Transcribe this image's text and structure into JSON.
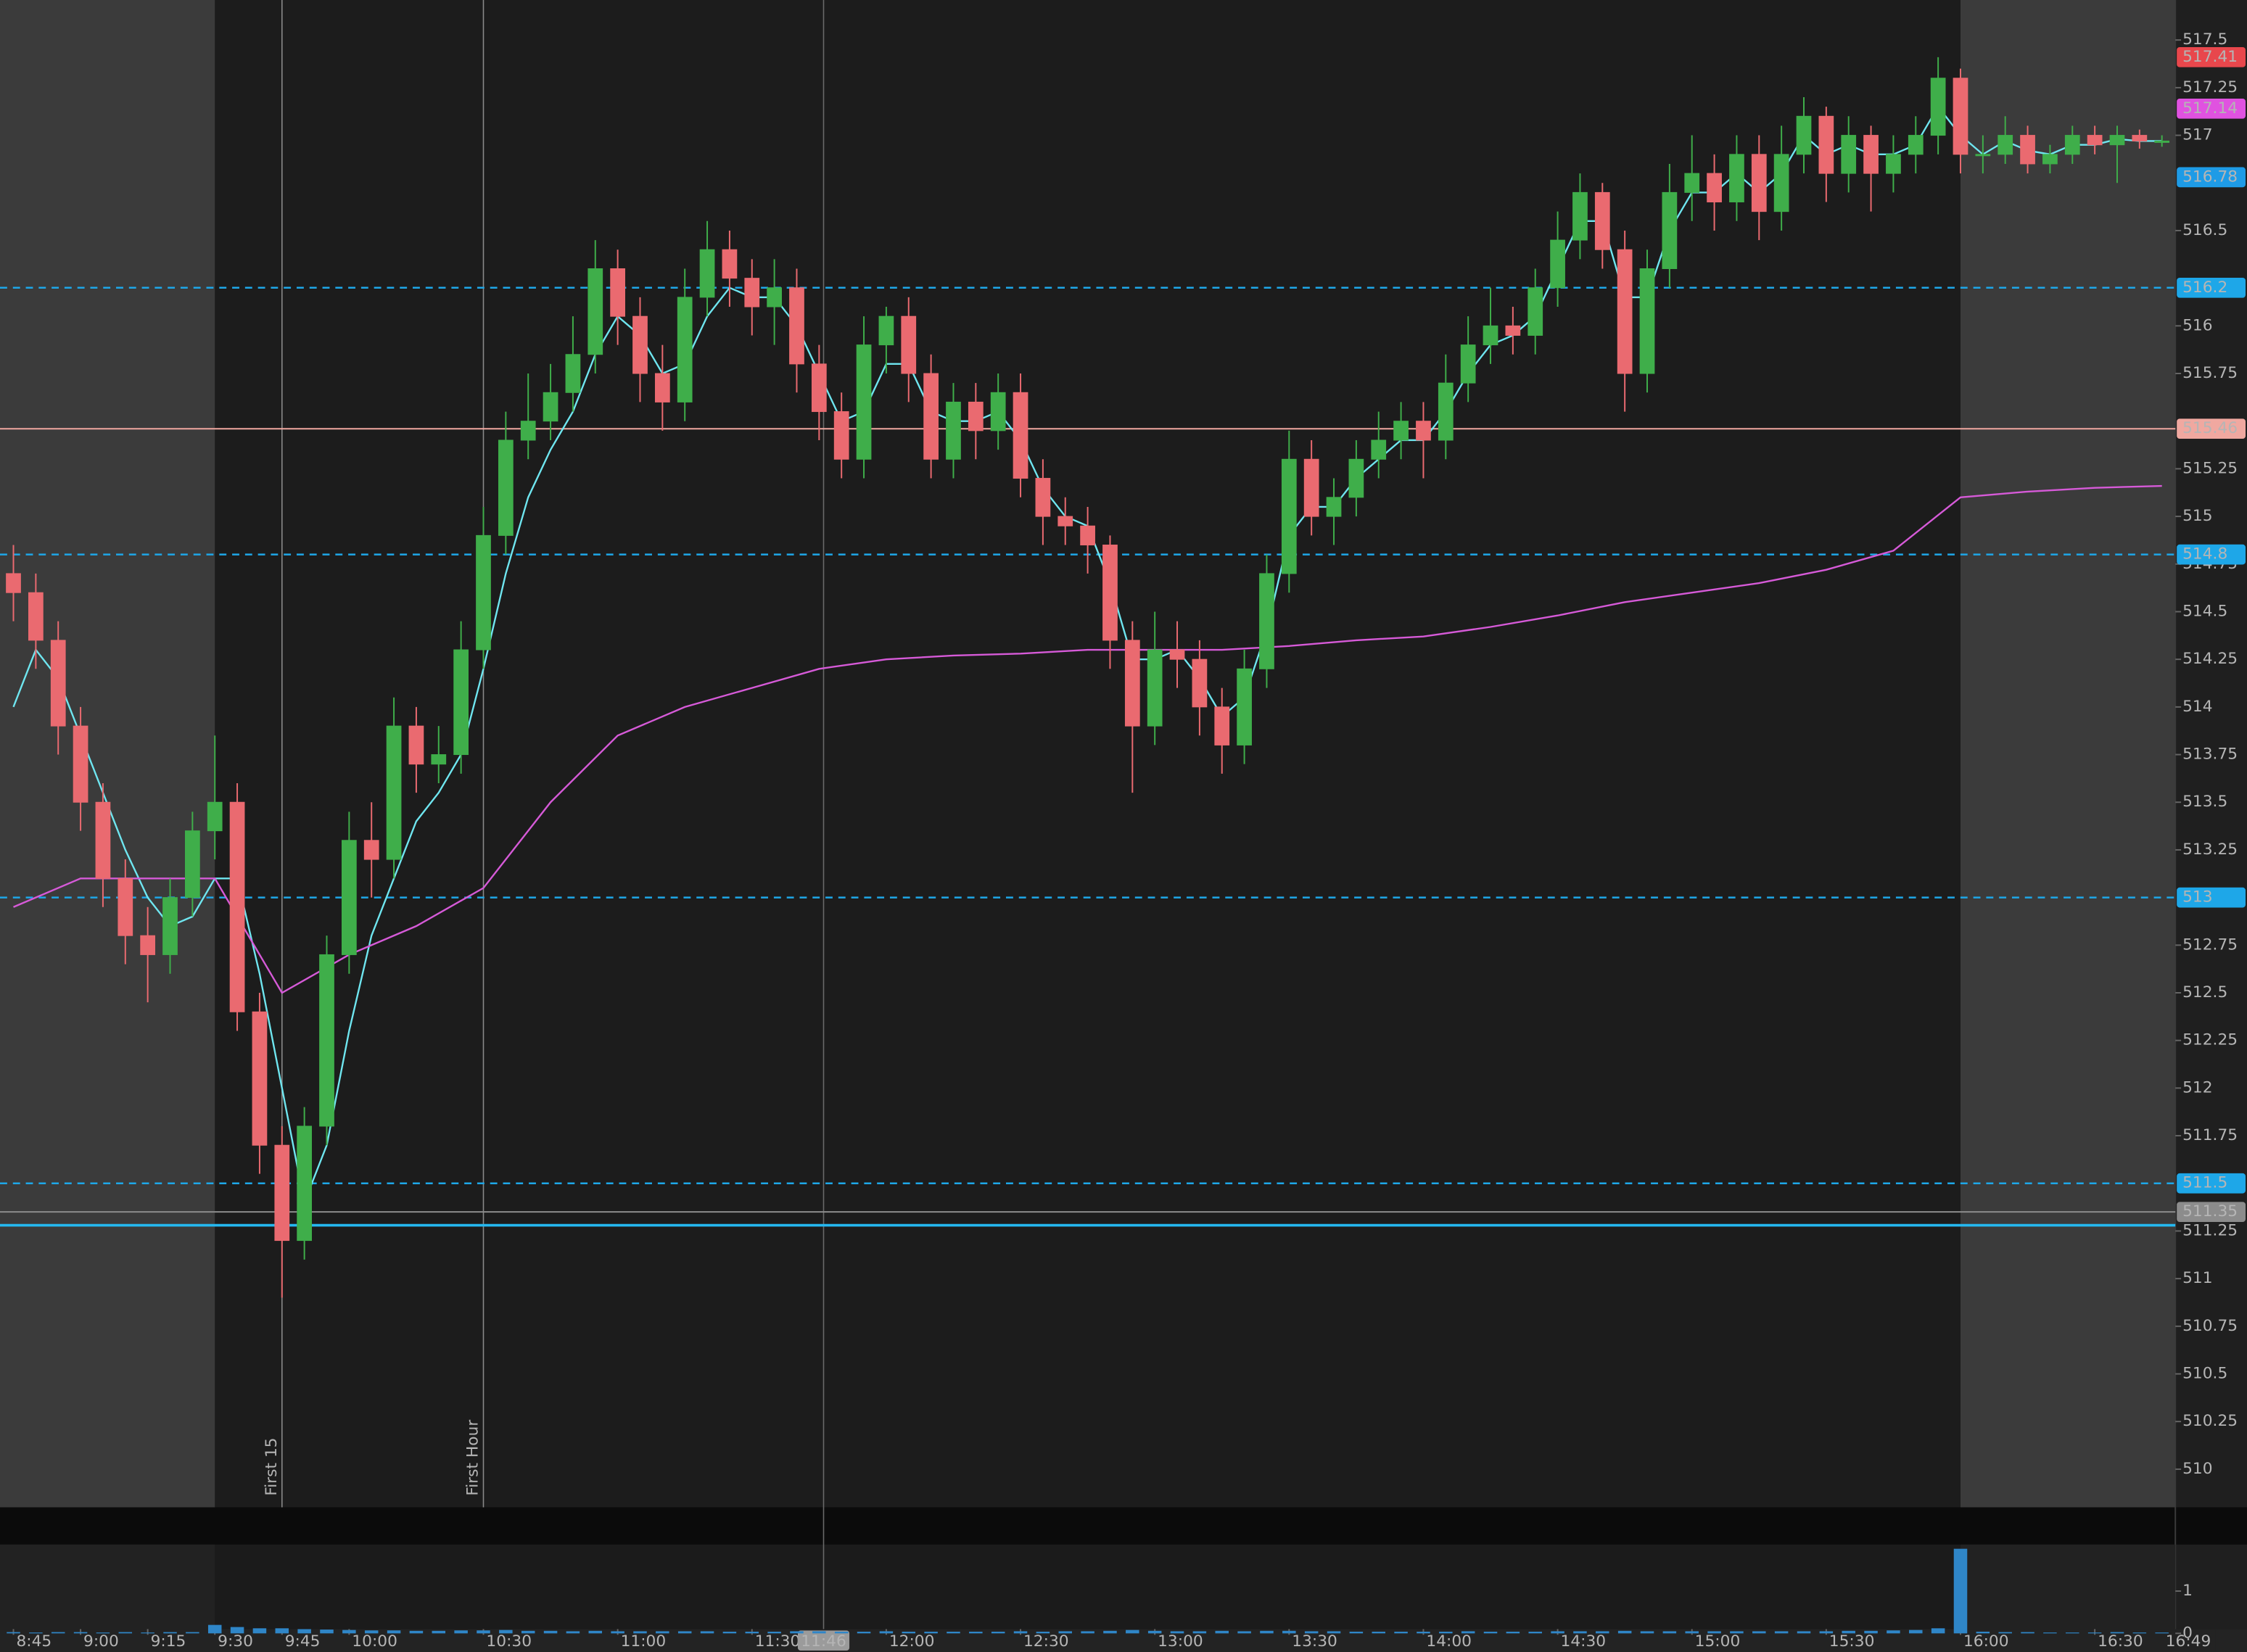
{
  "chart_data": {
    "type": "candlestick",
    "categories": [
      "8:45",
      "8:50",
      "8:55",
      "9:00",
      "9:05",
      "9:10",
      "9:15",
      "9:20",
      "9:25",
      "9:30",
      "9:35",
      "9:40",
      "9:45",
      "9:50",
      "9:55",
      "10:00",
      "10:05",
      "10:10",
      "10:15",
      "10:20",
      "10:25",
      "10:30",
      "10:35",
      "10:40",
      "10:45",
      "10:50",
      "10:55",
      "11:00",
      "11:05",
      "11:10",
      "11:15",
      "11:20",
      "11:25",
      "11:30",
      "11:35",
      "11:40",
      "11:45",
      "11:50",
      "11:55",
      "12:00",
      "12:05",
      "12:10",
      "12:15",
      "12:20",
      "12:25",
      "12:30",
      "12:35",
      "12:40",
      "12:45",
      "12:50",
      "12:55",
      "13:00",
      "13:05",
      "13:10",
      "13:15",
      "13:20",
      "13:25",
      "13:30",
      "13:35",
      "13:40",
      "13:45",
      "13:50",
      "13:55",
      "14:00",
      "14:05",
      "14:10",
      "14:15",
      "14:20",
      "14:25",
      "14:30",
      "14:35",
      "14:40",
      "14:45",
      "14:50",
      "14:55",
      "15:00",
      "15:05",
      "15:10",
      "15:15",
      "15:20",
      "15:25",
      "15:30",
      "15:35",
      "15:40",
      "15:45",
      "15:50",
      "15:55",
      "16:00",
      "16:05",
      "16:10",
      "16:15",
      "16:20",
      "16:25",
      "16:30",
      "16:35",
      "16:40",
      "16:45"
    ],
    "open": [
      514.7,
      514.6,
      514.35,
      513.9,
      513.5,
      513.1,
      512.8,
      512.7,
      513.0,
      513.35,
      513.5,
      512.4,
      511.7,
      511.2,
      511.8,
      512.7,
      513.3,
      513.2,
      513.9,
      513.7,
      513.75,
      514.3,
      514.9,
      515.4,
      515.5,
      515.65,
      515.85,
      516.3,
      516.05,
      515.75,
      515.6,
      516.15,
      516.4,
      516.25,
      516.1,
      516.2,
      515.8,
      515.55,
      515.3,
      515.9,
      516.05,
      515.75,
      515.3,
      515.6,
      515.45,
      515.65,
      515.2,
      515.0,
      514.95,
      514.85,
      514.35,
      513.9,
      514.3,
      514.25,
      514.0,
      513.8,
      514.2,
      514.7,
      515.3,
      515.0,
      515.1,
      515.3,
      515.4,
      515.5,
      515.4,
      515.7,
      515.9,
      516.0,
      515.95,
      516.2,
      516.45,
      516.7,
      516.4,
      515.75,
      516.3,
      516.7,
      516.8,
      516.65,
      516.9,
      516.6,
      516.9,
      517.1,
      516.8,
      517.0,
      516.8,
      516.9,
      517.0,
      517.3,
      516.9,
      516.9,
      517.0,
      516.85,
      516.9,
      517.0,
      516.95,
      517.0,
      516.97
    ],
    "high": [
      514.85,
      514.7,
      514.45,
      514.0,
      513.6,
      513.2,
      512.95,
      513.1,
      513.45,
      513.85,
      513.6,
      512.5,
      511.8,
      511.9,
      512.8,
      513.45,
      513.5,
      514.05,
      514.0,
      513.9,
      514.45,
      515.05,
      515.55,
      515.75,
      515.8,
      516.05,
      516.45,
      516.4,
      516.15,
      515.9,
      516.3,
      516.55,
      516.5,
      516.35,
      516.35,
      516.3,
      515.9,
      515.65,
      516.05,
      516.1,
      516.15,
      515.85,
      515.7,
      515.7,
      515.75,
      515.75,
      515.3,
      515.1,
      515.05,
      514.9,
      514.45,
      514.5,
      514.45,
      514.35,
      514.1,
      514.3,
      514.8,
      515.45,
      515.4,
      515.2,
      515.4,
      515.55,
      515.6,
      515.6,
      515.85,
      516.05,
      516.2,
      516.1,
      516.3,
      516.6,
      516.8,
      516.75,
      516.5,
      516.4,
      516.85,
      517.0,
      516.9,
      517.0,
      517.0,
      517.05,
      517.2,
      517.15,
      517.1,
      517.05,
      517.0,
      517.1,
      517.41,
      517.35,
      517.0,
      517.1,
      517.05,
      516.95,
      517.05,
      517.05,
      517.05,
      517.03,
      517.0
    ],
    "low": [
      514.45,
      514.2,
      513.75,
      513.35,
      512.95,
      512.65,
      512.45,
      512.6,
      512.9,
      513.2,
      512.3,
      511.55,
      510.9,
      511.1,
      511.7,
      512.6,
      513.0,
      513.1,
      513.55,
      513.6,
      513.65,
      514.2,
      514.8,
      515.3,
      515.4,
      515.55,
      515.75,
      515.9,
      515.6,
      515.45,
      515.5,
      516.05,
      516.1,
      515.95,
      515.9,
      515.65,
      515.4,
      515.2,
      515.2,
      515.75,
      515.6,
      515.2,
      515.2,
      515.3,
      515.35,
      515.1,
      514.85,
      514.85,
      514.7,
      514.2,
      513.55,
      513.8,
      514.1,
      513.85,
      513.65,
      513.7,
      514.1,
      514.6,
      514.9,
      514.85,
      515.0,
      515.2,
      515.3,
      515.2,
      515.3,
      515.6,
      515.8,
      515.85,
      515.85,
      516.1,
      516.35,
      516.3,
      515.55,
      515.65,
      516.2,
      516.55,
      516.5,
      516.55,
      516.45,
      516.5,
      516.8,
      516.65,
      516.7,
      516.6,
      516.7,
      516.8,
      516.9,
      516.8,
      516.8,
      516.85,
      516.8,
      516.8,
      516.85,
      516.9,
      516.75,
      516.93,
      516.94
    ],
    "close": [
      514.6,
      514.35,
      513.9,
      513.5,
      513.1,
      512.8,
      512.7,
      513.0,
      513.35,
      513.5,
      512.4,
      511.7,
      511.2,
      511.8,
      512.7,
      513.3,
      513.2,
      513.9,
      513.7,
      513.75,
      514.3,
      514.9,
      515.4,
      515.5,
      515.65,
      515.85,
      516.3,
      516.05,
      515.75,
      515.6,
      516.15,
      516.4,
      516.25,
      516.1,
      516.2,
      515.8,
      515.55,
      515.3,
      515.9,
      516.05,
      515.75,
      515.3,
      515.6,
      515.45,
      515.65,
      515.2,
      515.0,
      514.95,
      514.85,
      514.35,
      513.9,
      514.3,
      514.25,
      514.0,
      513.8,
      514.2,
      514.7,
      515.3,
      515.0,
      515.1,
      515.3,
      515.4,
      515.5,
      515.4,
      515.7,
      515.9,
      516.0,
      515.95,
      516.2,
      516.45,
      516.7,
      516.4,
      515.75,
      516.3,
      516.7,
      516.8,
      516.65,
      516.9,
      516.6,
      516.9,
      517.1,
      516.8,
      517.0,
      516.8,
      516.9,
      517.0,
      517.3,
      516.9,
      516.9,
      517.0,
      516.85,
      516.9,
      517.0,
      516.95,
      517.0,
      516.97,
      516.97
    ],
    "up_color": "#3fae4a",
    "down_color": "#ea6a70",
    "series": [
      {
        "color": "#6fe6f0",
        "values": [
          514.0,
          514.3,
          514.15,
          513.85,
          513.55,
          513.25,
          513.0,
          512.85,
          512.9,
          513.1,
          513.1,
          512.6,
          512.0,
          511.4,
          511.7,
          512.3,
          512.8,
          513.1,
          513.4,
          513.55,
          513.75,
          514.2,
          514.7,
          515.1,
          515.35,
          515.55,
          515.85,
          516.05,
          515.95,
          515.75,
          515.8,
          516.05,
          516.2,
          516.15,
          516.15,
          516.0,
          515.75,
          515.5,
          515.55,
          515.8,
          515.8,
          515.55,
          515.5,
          515.5,
          515.55,
          515.4,
          515.15,
          515.0,
          514.95,
          514.65,
          514.25,
          514.25,
          514.3,
          514.15,
          513.95,
          514.05,
          514.4,
          514.9,
          515.05,
          515.05,
          515.2,
          515.3,
          515.4,
          515.4,
          515.55,
          515.75,
          515.9,
          515.95,
          516.05,
          516.3,
          516.55,
          516.55,
          516.15,
          516.15,
          516.5,
          516.7,
          516.7,
          516.8,
          516.7,
          516.8,
          517.0,
          516.9,
          516.95,
          516.9,
          516.9,
          516.95,
          517.15,
          517.0,
          516.9,
          516.97,
          516.92,
          516.9,
          516.95,
          516.95,
          516.98,
          516.97,
          516.97
        ]
      },
      {
        "color": "#d65ad8",
        "x": [
          "8:45",
          "9:00",
          "9:15",
          "9:30",
          "9:45",
          "10:00",
          "10:15",
          "10:30",
          "10:45",
          "11:00",
          "11:15",
          "11:30",
          "11:45",
          "12:00",
          "12:15",
          "12:30",
          "12:45",
          "13:00",
          "13:15",
          "13:30",
          "13:45",
          "14:00",
          "14:15",
          "14:30",
          "14:45",
          "15:00",
          "15:15",
          "15:30",
          "15:45",
          "16:00",
          "16:15",
          "16:30",
          "16:45"
        ],
        "values": [
          512.95,
          513.1,
          513.1,
          513.1,
          512.5,
          512.7,
          512.85,
          513.05,
          513.5,
          513.85,
          514.0,
          514.1,
          514.2,
          514.25,
          514.27,
          514.28,
          514.3,
          514.3,
          514.3,
          514.32,
          514.35,
          514.37,
          514.42,
          514.48,
          514.55,
          514.6,
          514.65,
          514.72,
          514.82,
          515.1,
          515.13,
          515.15,
          515.16
        ]
      }
    ],
    "xlim": [
      "8:42",
      "16:48"
    ],
    "xticks": [
      "8:45",
      "9:00",
      "9:15",
      "9:30",
      "9:45",
      "10:00",
      "10:30",
      "11:00",
      "11:30",
      "12:00",
      "12:30",
      "13:00",
      "13:30",
      "14:00",
      "14:30",
      "15:00",
      "15:30",
      "16:00",
      "16:30"
    ],
    "ylim": [
      509.8,
      517.71
    ],
    "yticks": [
      510,
      510.25,
      510.5,
      510.75,
      511,
      511.25,
      511.75,
      512,
      512.25,
      512.5,
      512.75,
      513.25,
      513.5,
      513.75,
      514,
      514.25,
      514.5,
      514.75,
      515,
      515.25,
      515.75,
      516,
      516.5,
      517,
      517.25,
      517.5
    ],
    "sessions": {
      "regular_start": "9:30",
      "regular_end": "16:00"
    },
    "levels": [
      {
        "value": 517.41,
        "color": "#e8474c",
        "text_color": "#ffffff",
        "line": "none",
        "box": true
      },
      {
        "value": 517.14,
        "color": "#e052e0",
        "text_color": "#ffffff",
        "line": "none",
        "box": true
      },
      {
        "value": 516.78,
        "color": "#1e9be6",
        "text_color": "#0c2233",
        "line": "none",
        "box": true
      },
      {
        "value": 516.2,
        "color": "#1ea7e8",
        "text_color": "#0c2233",
        "line": "dashed",
        "box": true
      },
      {
        "value": 515.46,
        "color": "#f0a8a0",
        "text_color": "#3a1a18",
        "line": "solid",
        "box": true
      },
      {
        "value": 514.8,
        "color": "#1ea7e8",
        "text_color": "#0c2233",
        "line": "dashed",
        "box": true
      },
      {
        "value": 513,
        "color": "#1ea7e8",
        "text_color": "#0c2233",
        "line": "dashed",
        "box": true
      },
      {
        "value": 511.5,
        "color": "#1ea7e8",
        "text_color": "#0c2233",
        "line": "dashed",
        "box": true
      },
      {
        "value": 511.35,
        "color": "#8c8c8c",
        "text_color": "#111111",
        "line": "solid",
        "box": true
      },
      {
        "value": 511.28,
        "color": "#25b8f0",
        "text_color": "#111111",
        "line": "solid",
        "box": false
      }
    ],
    "markers": [
      {
        "x": "9:45",
        "label": "First 15"
      },
      {
        "x": "10:30",
        "label": "First Hour"
      }
    ],
    "cursor_time": "11:46",
    "current_time": "16:49",
    "volume": {
      "color": "#2f86c8",
      "values": [
        0.03,
        0.02,
        0.03,
        0.03,
        0.02,
        0.03,
        0.02,
        0.03,
        0.03,
        0.2,
        0.15,
        0.12,
        0.12,
        0.1,
        0.09,
        0.08,
        0.07,
        0.07,
        0.06,
        0.06,
        0.07,
        0.07,
        0.08,
        0.06,
        0.06,
        0.05,
        0.06,
        0.05,
        0.05,
        0.05,
        0.05,
        0.05,
        0.04,
        0.04,
        0.04,
        0.05,
        0.05,
        0.04,
        0.04,
        0.05,
        0.04,
        0.04,
        0.04,
        0.04,
        0.04,
        0.05,
        0.04,
        0.05,
        0.05,
        0.06,
        0.08,
        0.06,
        0.05,
        0.05,
        0.06,
        0.05,
        0.06,
        0.06,
        0.05,
        0.05,
        0.04,
        0.04,
        0.04,
        0.04,
        0.04,
        0.05,
        0.04,
        0.04,
        0.04,
        0.05,
        0.05,
        0.05,
        0.06,
        0.05,
        0.05,
        0.05,
        0.05,
        0.05,
        0.05,
        0.05,
        0.05,
        0.05,
        0.06,
        0.06,
        0.07,
        0.08,
        0.12,
        2.0,
        0.04,
        0.03,
        0.03,
        0.02,
        0.02,
        0.02,
        0.03,
        0.02,
        0.02
      ],
      "ylim": [
        0,
        2.1
      ],
      "yticks": [
        0,
        1
      ]
    }
  }
}
